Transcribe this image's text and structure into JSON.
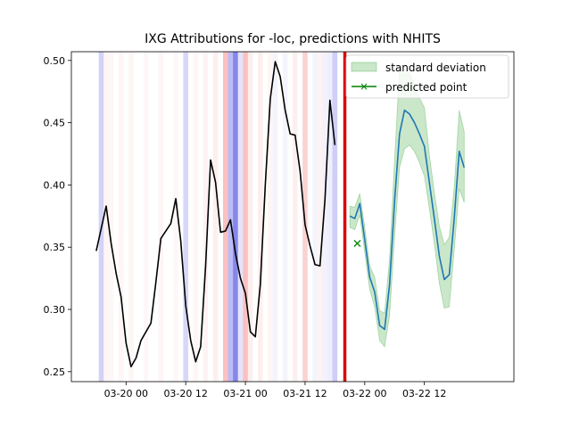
{
  "chart_data": {
    "type": "line",
    "title": "IXG Attributions for -loc, predictions with NHITS",
    "xlabel": "",
    "ylabel": "",
    "xlim": [
      "2024-03-19 13:00",
      "2024-03-23 06:00"
    ],
    "ylim": [
      0.242,
      0.507
    ],
    "x_ticks": [
      {
        "x": "2024-03-20 00:00",
        "label": "03-20 00"
      },
      {
        "x": "2024-03-20 12:00",
        "label": "03-20 12"
      },
      {
        "x": "2024-03-21 00:00",
        "label": "03-21 00"
      },
      {
        "x": "2024-03-21 12:00",
        "label": "03-21 12"
      },
      {
        "x": "2024-03-22 00:00",
        "label": "03-22 00"
      },
      {
        "x": "2024-03-22 12:00",
        "label": "03-22 12"
      }
    ],
    "y_ticks": [
      0.25,
      0.3,
      0.35,
      0.4,
      0.45,
      0.5
    ],
    "y_tick_labels": [
      "0.25",
      "0.30",
      "0.35",
      "0.40",
      "0.45",
      "0.50"
    ],
    "grid": false,
    "legend_position": "top-right",
    "legend": [
      {
        "label": "standard deviation",
        "kind": "band",
        "color": "#2ca02c"
      },
      {
        "label": "predicted point",
        "kind": "marker-line",
        "color": "#008000"
      }
    ],
    "cutoff": {
      "x": "2024-03-21 20:00",
      "color": "#dd0000"
    },
    "history": {
      "color": "#000000",
      "x_start": "2024-03-19 18:00",
      "step_hours": 1,
      "y": [
        0.347,
        0.365,
        0.383,
        0.353,
        0.329,
        0.31,
        0.273,
        0.254,
        0.261,
        0.275,
        0.282,
        0.289,
        0.322,
        0.357,
        0.363,
        0.369,
        0.389,
        0.355,
        0.303,
        0.275,
        0.258,
        0.27,
        0.335,
        0.42,
        0.402,
        0.362,
        0.363,
        0.372,
        0.345,
        0.325,
        0.313,
        0.282,
        0.278,
        0.32,
        0.4,
        0.469,
        0.499,
        0.487,
        0.46,
        0.441,
        0.44,
        0.411,
        0.368,
        0.351,
        0.336,
        0.335,
        0.388,
        0.468,
        0.432
      ]
    },
    "prediction": {
      "color": "#1f77b4",
      "band_color": "#2ca02c",
      "x_start": "2024-03-21 21:00",
      "step_hours": 1,
      "y": [
        0.375,
        0.373,
        0.385,
        0.356,
        0.326,
        0.314,
        0.287,
        0.284,
        0.32,
        0.387,
        0.441,
        0.46,
        0.457,
        0.45,
        0.441,
        0.431,
        0.402,
        0.373,
        0.343,
        0.324,
        0.328,
        0.373,
        0.427,
        0.414
      ],
      "lower": [
        0.366,
        0.364,
        0.376,
        0.346,
        0.316,
        0.302,
        0.275,
        0.27,
        0.295,
        0.358,
        0.414,
        0.429,
        0.432,
        0.427,
        0.418,
        0.407,
        0.381,
        0.353,
        0.321,
        0.301,
        0.302,
        0.348,
        0.397,
        0.386
      ],
      "upper": [
        0.383,
        0.382,
        0.393,
        0.366,
        0.335,
        0.326,
        0.299,
        0.297,
        0.341,
        0.42,
        0.493,
        0.49,
        0.49,
        0.481,
        0.47,
        0.462,
        0.424,
        0.394,
        0.367,
        0.352,
        0.358,
        0.398,
        0.46,
        0.443
      ]
    },
    "predicted_point": {
      "x": "2024-03-21 22:30",
      "y": 0.353,
      "color": "#008000"
    },
    "attribution_bars": [
      {
        "x": "2024-03-19 19:00",
        "color": "#2222dd",
        "alpha": 0.2
      },
      {
        "x": "2024-03-19 20:00",
        "color": "#ee3333",
        "alpha": 0.05
      },
      {
        "x": "2024-03-19 21:00",
        "color": "#ee3333",
        "alpha": 0.04
      },
      {
        "x": "2024-03-19 23:00",
        "color": "#ee3333",
        "alpha": 0.05
      },
      {
        "x": "2024-03-20 01:00",
        "color": "#ee3333",
        "alpha": 0.05
      },
      {
        "x": "2024-03-20 04:00",
        "color": "#ee3333",
        "alpha": 0.04
      },
      {
        "x": "2024-03-20 07:00",
        "color": "#ee3333",
        "alpha": 0.05
      },
      {
        "x": "2024-03-20 10:00",
        "color": "#ee3333",
        "alpha": 0.04
      },
      {
        "x": "2024-03-20 12:00",
        "color": "#2222dd",
        "alpha": 0.18
      },
      {
        "x": "2024-03-20 14:00",
        "color": "#ee3333",
        "alpha": 0.05
      },
      {
        "x": "2024-03-20 16:00",
        "color": "#ee3333",
        "alpha": 0.06
      },
      {
        "x": "2024-03-20 18:00",
        "color": "#ee3333",
        "alpha": 0.08
      },
      {
        "x": "2024-03-20 20:00",
        "color": "#ee3333",
        "alpha": 0.3
      },
      {
        "x": "2024-03-20 21:00",
        "color": "#2222dd",
        "alpha": 0.3
      },
      {
        "x": "2024-03-20 22:00",
        "color": "#2222dd",
        "alpha": 0.55
      },
      {
        "x": "2024-03-20 23:00",
        "color": "#2222dd",
        "alpha": 0.12
      },
      {
        "x": "2024-03-21 00:00",
        "color": "#ee3333",
        "alpha": 0.3
      },
      {
        "x": "2024-03-21 01:00",
        "color": "#ee3333",
        "alpha": 0.08
      },
      {
        "x": "2024-03-21 03:00",
        "color": "#ee3333",
        "alpha": 0.08
      },
      {
        "x": "2024-03-21 05:00",
        "color": "#ee3333",
        "alpha": 0.05
      },
      {
        "x": "2024-03-21 06:00",
        "color": "#2222dd",
        "alpha": 0.05
      },
      {
        "x": "2024-03-21 08:00",
        "color": "#2222dd",
        "alpha": 0.05
      },
      {
        "x": "2024-03-21 10:00",
        "color": "#ee3333",
        "alpha": 0.08
      },
      {
        "x": "2024-03-21 12:00",
        "color": "#ee3333",
        "alpha": 0.22
      },
      {
        "x": "2024-03-21 14:00",
        "color": "#2222dd",
        "alpha": 0.05
      },
      {
        "x": "2024-03-21 15:00",
        "color": "#ee3333",
        "alpha": 0.06
      },
      {
        "x": "2024-03-21 16:00",
        "color": "#2222dd",
        "alpha": 0.06
      },
      {
        "x": "2024-03-21 17:00",
        "color": "#2222dd",
        "alpha": 0.08
      },
      {
        "x": "2024-03-21 18:00",
        "color": "#2222dd",
        "alpha": 0.22
      }
    ]
  }
}
